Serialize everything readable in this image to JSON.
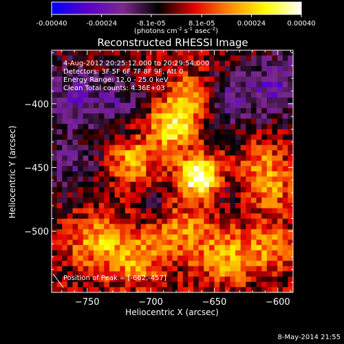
{
  "chart_data": {
    "type": "heatmap",
    "title": "Reconstructed RHESSI Image",
    "colorbar": {
      "ticks": [
        "-0.00040",
        "-0.00024",
        "-8.1e-05",
        "8.1e-05",
        "0.00024",
        "0.00040"
      ],
      "range": [
        -0.0004,
        0.0004
      ],
      "unit_prefix": "(photons cm",
      "unit_exp1": "-2",
      "unit_mid": " s",
      "unit_exp2": "-1",
      "unit_mid2": " asec",
      "unit_exp3": "-2",
      "unit_suffix": ")",
      "colormap": [
        "#0000ff",
        "#5a00c8",
        "#7c2a8c",
        "#000000",
        "#e60000",
        "#ff8c00",
        "#ffff00",
        "#ffffff"
      ]
    },
    "xlabel": "Heliocentric X (arcsec)",
    "ylabel": "Heliocentric Y (arcsec)",
    "xlim": [
      -778,
      -588
    ],
    "ylim": [
      -548,
      -358
    ],
    "xticks": [
      -750,
      -700,
      -650,
      -600
    ],
    "yticks": [
      -500,
      -450,
      -400
    ],
    "info_lines": [
      "4-Aug-2012 20:25:12.000 to 20:29:54.000",
      "Detectors: 3F 5F 6F 7F 8F 9F, Att 0",
      "Energy Range: 12.0 - 25.0 keV",
      "Clean     Total counts: 4.36E+03"
    ],
    "peak_label": "Position of Peak = [-662,-457]",
    "peak": [
      -662,
      -457
    ],
    "peak_value": 0.0004,
    "sources": [
      {
        "x": -662,
        "y": -457,
        "amplitude": 0.00043,
        "sigma": 11
      },
      {
        "x": -683,
        "y": -418,
        "amplitude": 0.0003,
        "sigma": 13
      },
      {
        "x": -668,
        "y": -395,
        "amplitude": 0.00024,
        "sigma": 12
      },
      {
        "x": -714,
        "y": -445,
        "amplitude": 0.00022,
        "sigma": 12
      },
      {
        "x": -742,
        "y": -508,
        "amplitude": 0.0002,
        "sigma": 15
      },
      {
        "x": -712,
        "y": -522,
        "amplitude": 0.0002,
        "sigma": 14
      },
      {
        "x": -676,
        "y": -500,
        "amplitude": 0.00016,
        "sigma": 16
      },
      {
        "x": -640,
        "y": -520,
        "amplitude": 0.0002,
        "sigma": 15
      },
      {
        "x": -606,
        "y": -512,
        "amplitude": 0.00018,
        "sigma": 13
      },
      {
        "x": -612,
        "y": -448,
        "amplitude": 0.00016,
        "sigma": 13
      },
      {
        "x": -605,
        "y": -470,
        "amplitude": 0.00014,
        "sigma": 12
      },
      {
        "x": -640,
        "y": -398,
        "amplitude": -0.00018,
        "sigma": 16
      },
      {
        "x": -600,
        "y": -385,
        "amplitude": -0.00022,
        "sigma": 18
      },
      {
        "x": -760,
        "y": -395,
        "amplitude": -0.0002,
        "sigma": 20
      },
      {
        "x": -765,
        "y": -450,
        "amplitude": -0.00014,
        "sigma": 16
      },
      {
        "x": -720,
        "y": -398,
        "amplitude": -0.00012,
        "sigma": 14
      },
      {
        "x": -697,
        "y": -478,
        "amplitude": -0.0001,
        "sigma": 10
      },
      {
        "x": -640,
        "y": -470,
        "amplitude": -8e-05,
        "sigma": 8
      }
    ],
    "footer_date": "8-May-2014 21:55"
  }
}
